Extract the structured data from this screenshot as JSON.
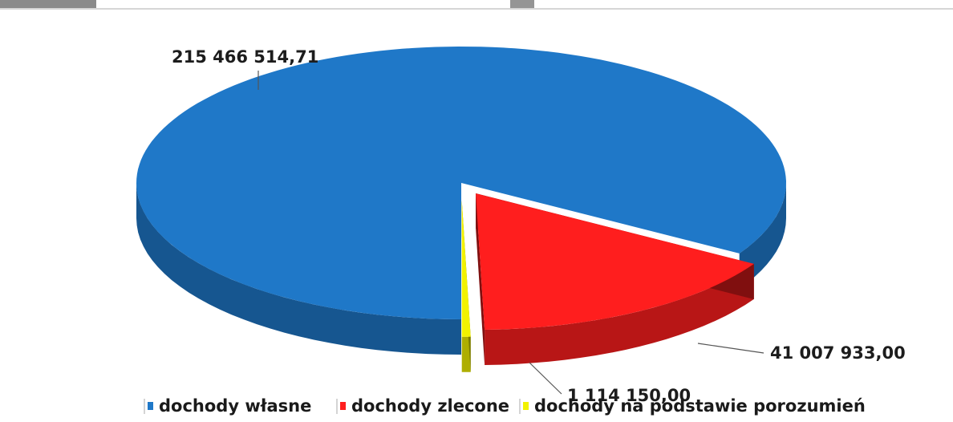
{
  "chart_data": {
    "type": "pie",
    "style": "3d-exploded",
    "slices": [
      {
        "name": "dochody własne",
        "value": 215466514.71,
        "label": "215 466 514,71",
        "color": "#1f78c8"
      },
      {
        "name": "dochody zlecone",
        "value": 41007933.0,
        "label": "41 007 933,00",
        "color": "#ff1e1e"
      },
      {
        "name": "dochody na podstawie porozumień",
        "value": 1114150.0,
        "label": "1 114 150,00",
        "color": "#f2f200"
      }
    ],
    "legend_position": "bottom"
  }
}
